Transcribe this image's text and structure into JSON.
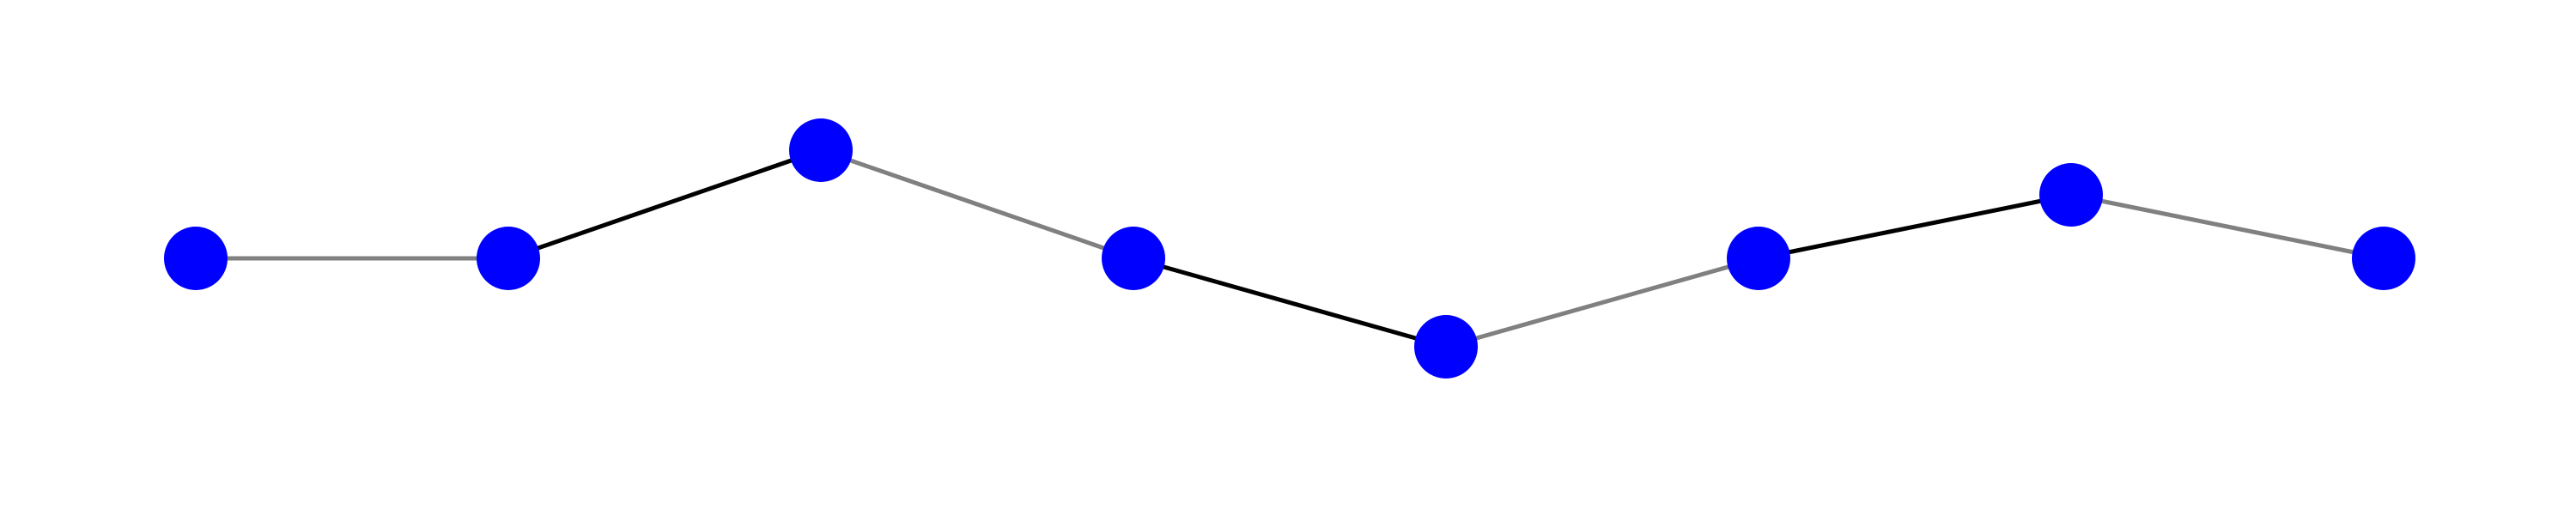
{
  "graph": {
    "node_color": "#0000ff",
    "nodes": [
      {
        "id": "n0"
      },
      {
        "id": "n1"
      },
      {
        "id": "n2"
      },
      {
        "id": "n3"
      },
      {
        "id": "n4"
      },
      {
        "id": "n5"
      },
      {
        "id": "n6"
      },
      {
        "id": "n7"
      }
    ],
    "edges": [
      {
        "from": "n0",
        "to": "n1",
        "color": "#808080"
      },
      {
        "from": "n1",
        "to": "n2",
        "color": "#000000"
      },
      {
        "from": "n2",
        "to": "n3",
        "color": "#808080"
      },
      {
        "from": "n3",
        "to": "n4",
        "color": "#000000"
      },
      {
        "from": "n4",
        "to": "n5",
        "color": "#808080"
      },
      {
        "from": "n5",
        "to": "n6",
        "color": "#000000"
      },
      {
        "from": "n6",
        "to": "n7",
        "color": "#808080"
      }
    ]
  }
}
